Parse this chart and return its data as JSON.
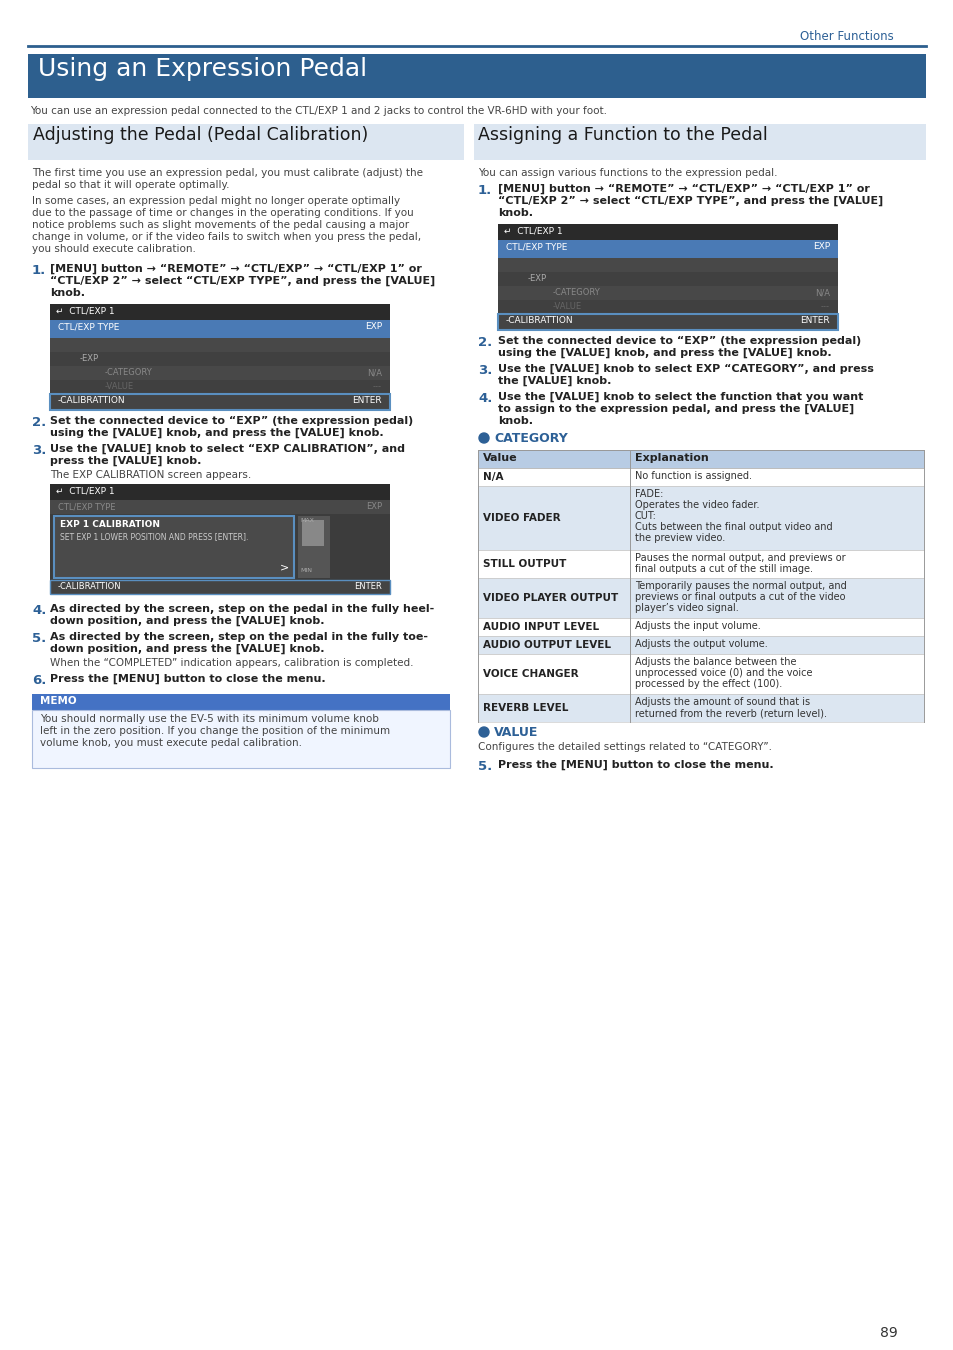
{
  "page_bg": "#ffffff",
  "top_label": "Other Functions",
  "top_label_color": "#2d6096",
  "main_title": "Using an Expression Pedal",
  "main_title_bg": "#2d5f8e",
  "divider_color": "#2d5f8e",
  "left_section_title": "Adjusting the Pedal (Pedal Calibration)",
  "left_section_bg": "#dce6f1",
  "right_section_title": "Assigning a Function to the Pedal",
  "right_section_bg": "#dce6f1",
  "blue_number_color": "#2d6096",
  "table_header_bg": "#b8cce4",
  "table_row_alt_bg": "#dce6f1",
  "table_row_bg": "#ffffff",
  "category_dot_color": "#2d6096",
  "page_number": "89",
  "memo_bg": "#4472c4",
  "screen_bg": "#3c3c3c",
  "screen_header_bg": "#2a2a2a",
  "screen_highlight": "#4a7ab5",
  "screen_border": "#5a8fc0"
}
